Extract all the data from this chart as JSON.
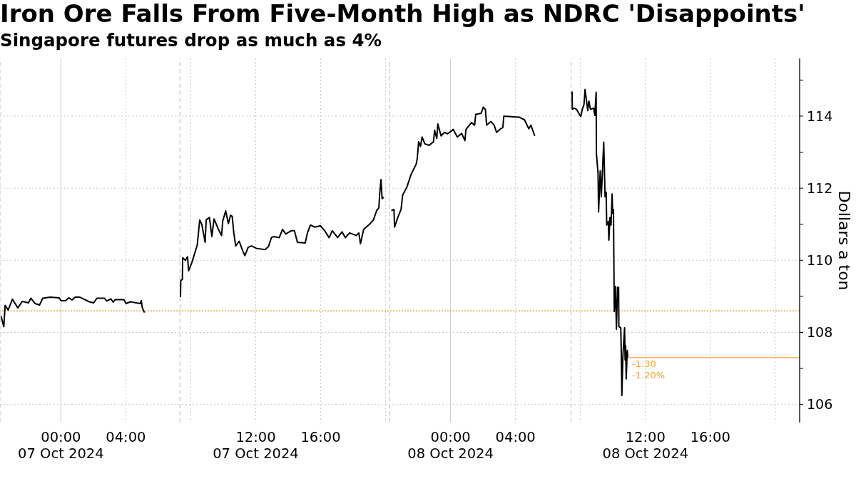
{
  "chart_data": {
    "type": "line",
    "title": "Iron Ore Falls From Five-Month High as NDRC 'Disappoints'",
    "subtitle": "Singapore futures drop as much as 4%",
    "ylabel": "Dollars a ton",
    "xlim": [
      "2024-10-06T20:15",
      "2024-10-08T21:30"
    ],
    "xticks": [
      {
        "value": "2024-10-07T00:00",
        "label": "00:00\n07 Oct 2024"
      },
      {
        "value": "2024-10-07T04:00",
        "label": "04:00"
      },
      {
        "value": "2024-10-07T08:00",
        "label": null
      },
      {
        "value": "2024-10-07T12:00",
        "label": "12:00\n07 Oct 2024"
      },
      {
        "value": "2024-10-07T16:00",
        "label": "16:00"
      },
      {
        "value": "2024-10-07T20:00",
        "label": null
      },
      {
        "value": "2024-10-08T00:00",
        "label": "00:00\n08 Oct 2024"
      },
      {
        "value": "2024-10-08T04:00",
        "label": "04:00"
      },
      {
        "value": "2024-10-08T08:00",
        "label": null
      },
      {
        "value": "2024-10-08T12:00",
        "label": "12:00\n08 Oct 2024"
      },
      {
        "value": "2024-10-08T16:00",
        "label": "16:00"
      },
      {
        "value": "2024-10-08T20:00",
        "label": null
      }
    ],
    "ylim": [
      105.5,
      115.6
    ],
    "yticks": [
      106,
      {
        "value": 107,
        "label": null
      },
      108,
      {
        "value": 109,
        "label": null
      },
      110,
      {
        "value": 111,
        "label": null
      },
      112,
      {
        "value": 113,
        "label": null
      },
      114,
      {
        "value": 115,
        "label": null
      }
    ],
    "grid": true,
    "series": [
      {
        "color": "#000000",
        "x": [
          "2024-10-06T20:19",
          "2024-10-06T20:29",
          "2024-10-06T20:34",
          "2024-10-06T20:45",
          "2024-10-06T21:01",
          "2024-10-06T21:21",
          "2024-10-06T21:37",
          "2024-10-06T22:00",
          "2024-10-06T22:09",
          "2024-10-06T22:25",
          "2024-10-06T22:41",
          "2024-10-06T22:53",
          "2024-10-06T23:21",
          "2024-10-06T23:53",
          "2024-10-07T00:01",
          "2024-10-07T00:17",
          "2024-10-07T00:29",
          "2024-10-07T00:41",
          "2024-10-07T00:53",
          "2024-10-07T01:09",
          "2024-10-07T01:45",
          "2024-10-07T02:01",
          "2024-10-07T02:13",
          "2024-10-07T02:41",
          "2024-10-07T02:49",
          "2024-10-07T03:05",
          "2024-10-07T03:13",
          "2024-10-07T03:21",
          "2024-10-07T03:53",
          "2024-10-07T04:01",
          "2024-10-07T04:17",
          "2024-10-07T04:53",
          "2024-10-07T04:57",
          "2024-10-07T05:01",
          "2024-10-07T05:09",
          "2024-10-07T06:10",
          "2024-10-07T07:22",
          "2024-10-07T07:23",
          "2024-10-07T07:29",
          "2024-10-07T07:30",
          "2024-10-07T07:40",
          "2024-10-07T07:48",
          "2024-10-07T07:52",
          "2024-10-07T08:04",
          "2024-10-07T08:16",
          "2024-10-07T08:24",
          "2024-10-07T08:33",
          "2024-10-07T08:41",
          "2024-10-07T08:53",
          "2024-10-07T08:57",
          "2024-10-07T09:09",
          "2024-10-07T09:18",
          "2024-10-07T09:26",
          "2024-10-07T09:42",
          "2024-10-07T09:54",
          "2024-10-07T09:58",
          "2024-10-07T10:09",
          "2024-10-07T10:19",
          "2024-10-07T10:27",
          "2024-10-07T10:33",
          "2024-10-07T10:39",
          "2024-10-07T10:46",
          "2024-10-07T10:59",
          "2024-10-07T11:12",
          "2024-10-07T11:20",
          "2024-10-07T11:32",
          "2024-10-07T11:45",
          "2024-10-07T12:03",
          "2024-10-07T12:35",
          "2024-10-07T12:47",
          "2024-10-07T12:58",
          "2024-10-07T13:07",
          "2024-10-07T13:27",
          "2024-10-07T13:39",
          "2024-10-07T13:51",
          "2024-10-07T14:11",
          "2024-10-07T14:23",
          "2024-10-07T14:34",
          "2024-10-07T15:03",
          "2024-10-07T15:11",
          "2024-10-07T15:22",
          "2024-10-07T15:39",
          "2024-10-07T15:59",
          "2024-10-07T16:15",
          "2024-10-07T16:31",
          "2024-10-07T16:43",
          "2024-10-07T17:03",
          "2024-10-07T17:19",
          "2024-10-07T17:31",
          "2024-10-07T17:47",
          "2024-10-07T18:11",
          "2024-10-07T18:21",
          "2024-10-07T18:27",
          "2024-10-07T18:39",
          "2024-10-07T18:59",
          "2024-10-07T19:15",
          "2024-10-07T19:27",
          "2024-10-07T19:35",
          "2024-10-07T19:38",
          "2024-10-07T19:43",
          "2024-10-07T19:47",
          "2024-10-07T19:53",
          "2024-10-07T20:07",
          "2024-10-07T20:21",
          "2024-10-07T20:31",
          "2024-10-07T20:33",
          "2024-10-07T20:45",
          "2024-10-07T20:57",
          "2024-10-07T21:03",
          "2024-10-07T21:19",
          "2024-10-07T21:34",
          "2024-10-07T21:53",
          "2024-10-07T21:57",
          "2024-10-07T22:02",
          "2024-10-07T22:09",
          "2024-10-07T22:15",
          "2024-10-07T22:25",
          "2024-10-07T22:41",
          "2024-10-07T22:57",
          "2024-10-07T23:01",
          "2024-10-07T23:09",
          "2024-10-07T23:13",
          "2024-10-07T23:25",
          "2024-10-07T23:37",
          "2024-10-07T23:49",
          "2024-10-08T00:10",
          "2024-10-08T00:25",
          "2024-10-08T00:41",
          "2024-10-08T00:53",
          "2024-10-08T00:57",
          "2024-10-08T01:17",
          "2024-10-08T01:29",
          "2024-10-08T01:33",
          "2024-10-08T01:53",
          "2024-10-08T02:01",
          "2024-10-08T02:09",
          "2024-10-08T02:13",
          "2024-10-08T02:29",
          "2024-10-08T02:41",
          "2024-10-08T02:50",
          "2024-10-08T03:05",
          "2024-10-08T03:13",
          "2024-10-08T03:17",
          "2024-10-08T04:14",
          "2024-10-08T04:21",
          "2024-10-08T04:33",
          "2024-10-08T04:49",
          "2024-10-08T04:57",
          "2024-10-08T05:11",
          "2024-10-08T06:20",
          "2024-10-08T07:29",
          "2024-10-08T07:30",
          "2024-10-08T07:37",
          "2024-10-08T07:45",
          "2024-10-08T08:01",
          "2024-10-08T08:07",
          "2024-10-08T08:13",
          "2024-10-08T08:17",
          "2024-10-08T08:22",
          "2024-10-08T08:27",
          "2024-10-08T08:31",
          "2024-10-08T08:37",
          "2024-10-08T08:49",
          "2024-10-08T08:53",
          "2024-10-08T08:58",
          "2024-10-08T08:59",
          "2024-10-08T09:02",
          "2024-10-08T09:05",
          "2024-10-08T09:07",
          "2024-10-08T09:13",
          "2024-10-08T09:17",
          "2024-10-08T09:21",
          "2024-10-08T09:26",
          "2024-10-08T09:31",
          "2024-10-08T09:35",
          "2024-10-08T09:37",
          "2024-10-08T09:43",
          "2024-10-08T09:45",
          "2024-10-08T09:49",
          "2024-10-08T09:53",
          "2024-10-08T09:57",
          "2024-10-08T09:59",
          "2024-10-08T10:02",
          "2024-10-08T10:05",
          "2024-10-08T10:09",
          "2024-10-08T10:13",
          "2024-10-08T10:17",
          "2024-10-08T10:21",
          "2024-10-08T10:22",
          "2024-10-08T10:29",
          "2024-10-08T10:31",
          "2024-10-08T10:33",
          "2024-10-08T10:37",
          "2024-10-08T10:43",
          "2024-10-08T10:45",
          "2024-10-08T10:47",
          "2024-10-08T10:49",
          "2024-10-08T10:53",
          "2024-10-08T10:55"
        ],
        "values": [
          108.45,
          108.16,
          108.75,
          108.62,
          108.92,
          108.68,
          108.86,
          108.82,
          108.95,
          108.8,
          108.76,
          108.95,
          108.98,
          108.96,
          108.88,
          108.88,
          108.96,
          108.9,
          108.98,
          108.98,
          108.85,
          108.82,
          108.95,
          108.95,
          108.87,
          108.93,
          108.84,
          108.91,
          108.91,
          108.8,
          108.85,
          108.8,
          108.88,
          108.68,
          108.55,
          null,
          108.98,
          109.44,
          109.47,
          110.07,
          110.0,
          110.1,
          109.71,
          109.94,
          110.23,
          110.43,
          111.12,
          110.99,
          110.5,
          111.12,
          111.19,
          110.66,
          111.15,
          110.86,
          110.69,
          111.09,
          111.37,
          111.02,
          111.25,
          111.22,
          110.76,
          110.4,
          110.53,
          110.26,
          110.13,
          110.36,
          110.4,
          110.33,
          110.3,
          110.38,
          110.63,
          110.66,
          110.63,
          110.86,
          110.73,
          110.82,
          110.82,
          110.5,
          110.48,
          110.76,
          110.98,
          110.92,
          110.96,
          110.82,
          110.63,
          110.82,
          110.63,
          110.79,
          110.63,
          110.76,
          110.69,
          110.76,
          110.46,
          110.86,
          110.99,
          111.12,
          111.38,
          111.45,
          111.84,
          112.24,
          111.71,
          111.75,
          null,
          111.38,
          111.41,
          110.92,
          111.19,
          111.41,
          111.81,
          112.04,
          112.38,
          112.67,
          112.83,
          113.29,
          113.16,
          113.42,
          113.23,
          113.19,
          113.29,
          113.61,
          113.38,
          113.78,
          113.45,
          113.55,
          113.51,
          113.63,
          113.42,
          113.52,
          113.32,
          113.63,
          113.82,
          113.75,
          114.05,
          114.08,
          114.25,
          114.18,
          113.75,
          113.85,
          113.75,
          113.55,
          113.65,
          113.68,
          114.0,
          113.97,
          113.94,
          113.9,
          113.65,
          113.75,
          113.45,
          null,
          114.68,
          114.19,
          114.22,
          114.19,
          113.99,
          114.19,
          114.32,
          114.74,
          114.45,
          114.15,
          114.42,
          114.19,
          114.22,
          114.02,
          114.66,
          112.95,
          112.69,
          112.42,
          111.34,
          112.48,
          111.76,
          112.42,
          113.28,
          111.76,
          111.89,
          110.98,
          111.08,
          110.56,
          111.19,
          110.98,
          111.84,
          111.31,
          111.41,
          108.58,
          109.28,
          108.09,
          109.25,
          109.25,
          108.16,
          108.13,
          107.37,
          106.25,
          107.37,
          108.13,
          107.24,
          107.63,
          106.71,
          107.5,
          107.3
        ]
      },
      {
        "type": "line",
        "color": "#f2a33a",
        "x": [
          "2024-10-08T10:55",
          "2024-10-08T21:30"
        ],
        "values": [
          107.3,
          107.3
        ]
      }
    ],
    "ref_lines": [
      {
        "axis": "x",
        "value": "2024-10-06T20:15",
        "color": "#bbbbbb",
        "line_style": "dashed"
      },
      {
        "axis": "x",
        "value": "2024-10-07T07:20",
        "color": "#bbbbbb",
        "line_style": "dashed"
      },
      {
        "axis": "x",
        "value": "2024-10-07T20:15",
        "color": "#bbbbbb",
        "line_style": "dashed"
      },
      {
        "axis": "x",
        "value": "2024-10-08T07:25",
        "color": "#bbbbbb",
        "line_style": "dashed"
      },
      {
        "axis": "y",
        "value": 108.6,
        "color": "#f2a33a",
        "line_style": "dotted"
      }
    ],
    "annotations": [
      "-1.30",
      "-1.20%"
    ]
  }
}
